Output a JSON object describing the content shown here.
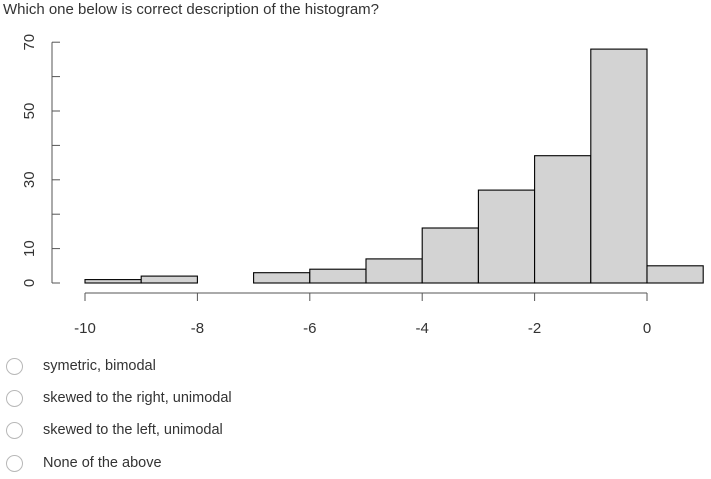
{
  "question": {
    "text": "Which one below is correct description of the histogram?"
  },
  "chart_data": {
    "type": "bar",
    "title": "",
    "xlabel": "",
    "ylabel": "",
    "bin_edges": [
      -10,
      -9,
      -8,
      -7,
      -6,
      -5,
      -4,
      -3,
      -2,
      -1,
      0,
      1
    ],
    "values": [
      1,
      2,
      0,
      3,
      4,
      7,
      16,
      27,
      37,
      68,
      5
    ],
    "xlim": [
      -10,
      1
    ],
    "ylim": [
      0,
      70
    ],
    "xticks": [
      -10,
      -8,
      -6,
      -4,
      -2,
      0
    ],
    "xtick_labels": [
      "-10",
      "-8",
      "-6",
      "-4",
      "-2",
      "0"
    ],
    "yticks": [
      0,
      10,
      30,
      50,
      70
    ],
    "ytick_labels": [
      "0",
      "10",
      "30",
      "50",
      "70"
    ],
    "yminor_ticks": [
      20,
      40,
      60
    ],
    "bar_color": "#d3d3d3",
    "edge_color": "#000000",
    "grid": false
  },
  "options": [
    {
      "label": "symetric, bimodal"
    },
    {
      "label": "skewed to the right, unimodal"
    },
    {
      "label": "skewed to the left, unimodal"
    },
    {
      "label": "None of the above"
    }
  ]
}
